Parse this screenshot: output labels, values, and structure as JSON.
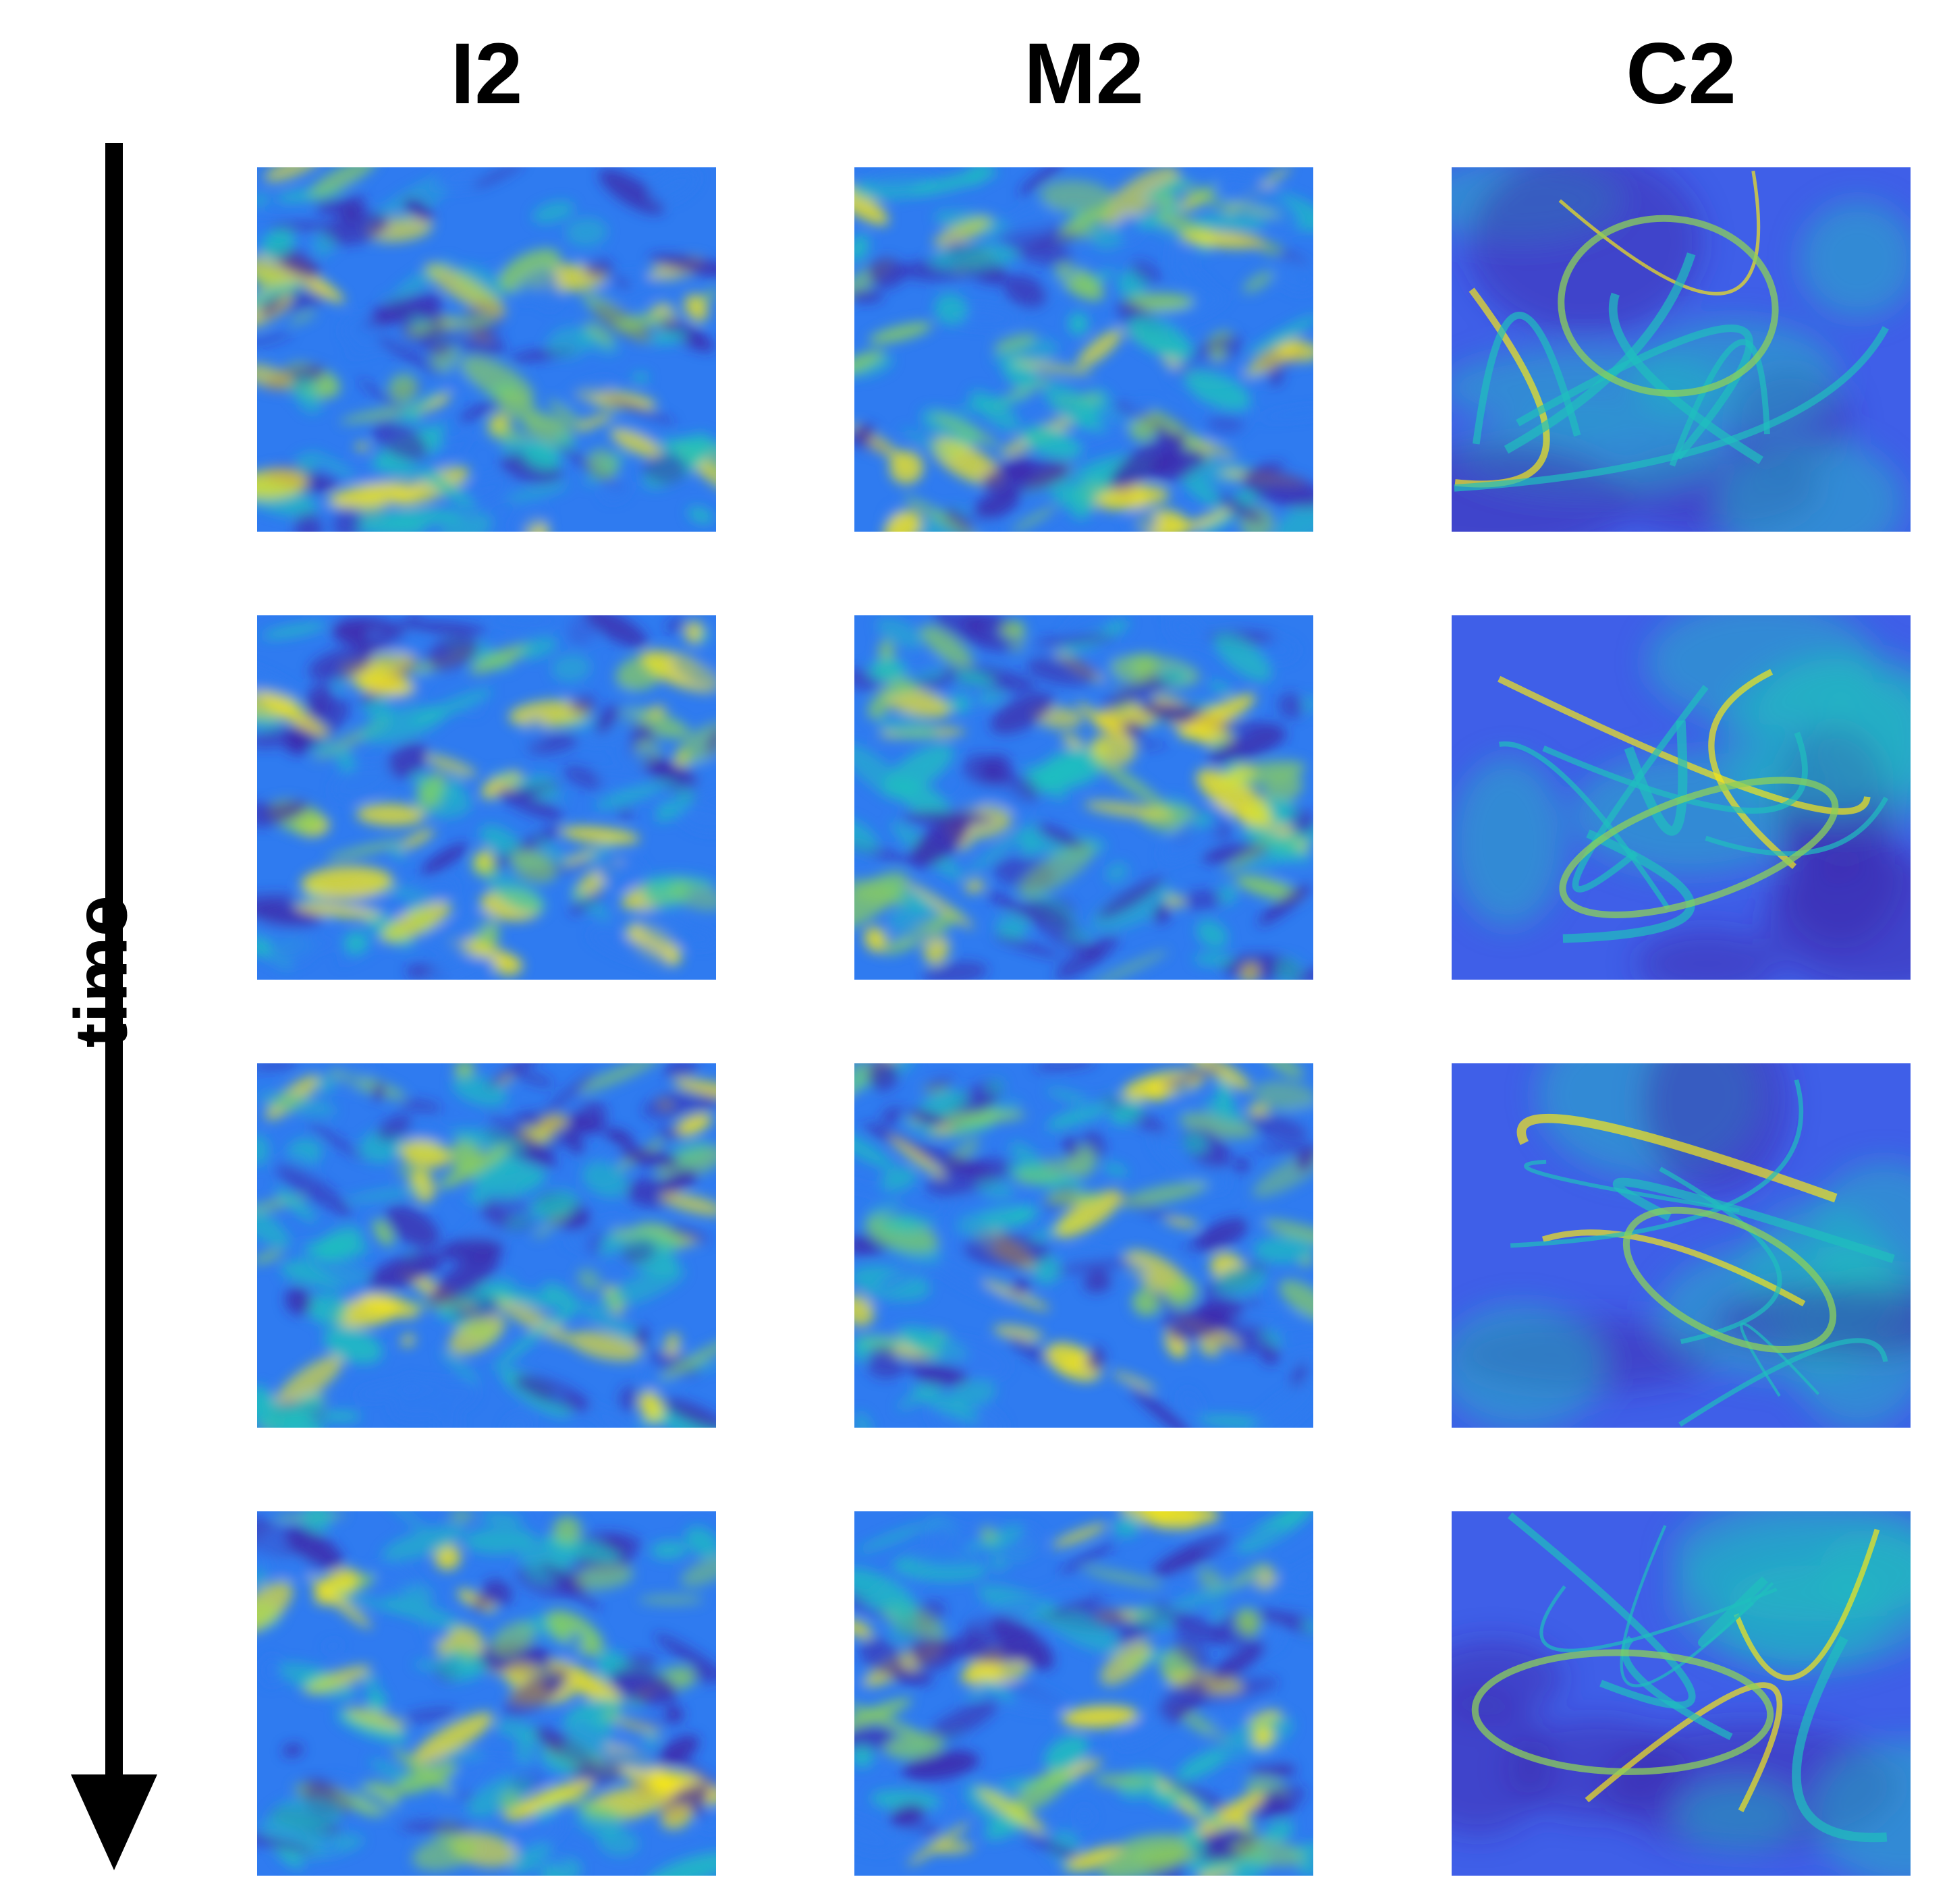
{
  "columns": [
    "I2",
    "M2",
    "C2"
  ],
  "axis": {
    "label": "time",
    "direction": "down"
  },
  "rows": 4,
  "colormap": {
    "low": "#3E26A8",
    "mid_low": "#2F7BF0",
    "mid": "#1FBFBE",
    "mid_high": "#8CD05A",
    "high": "#F5E61A"
  },
  "panels": [
    {
      "name": "panel-i2-t1",
      "style": "turbulent",
      "seed": 11
    },
    {
      "name": "panel-m2-t1",
      "style": "turbulent",
      "seed": 12
    },
    {
      "name": "panel-c2-t1",
      "style": "caustic",
      "seed": 13
    },
    {
      "name": "panel-i2-t2",
      "style": "turbulent",
      "seed": 21
    },
    {
      "name": "panel-m2-t2",
      "style": "turbulent",
      "seed": 22
    },
    {
      "name": "panel-c2-t2",
      "style": "caustic",
      "seed": 23
    },
    {
      "name": "panel-i2-t3",
      "style": "turbulent",
      "seed": 31
    },
    {
      "name": "panel-m2-t3",
      "style": "turbulent",
      "seed": 32
    },
    {
      "name": "panel-c2-t3",
      "style": "caustic",
      "seed": 33
    },
    {
      "name": "panel-i2-t4",
      "style": "turbulent",
      "seed": 41
    },
    {
      "name": "panel-m2-t4",
      "style": "turbulent",
      "seed": 42
    },
    {
      "name": "panel-c2-t4",
      "style": "caustic",
      "seed": 43
    }
  ]
}
